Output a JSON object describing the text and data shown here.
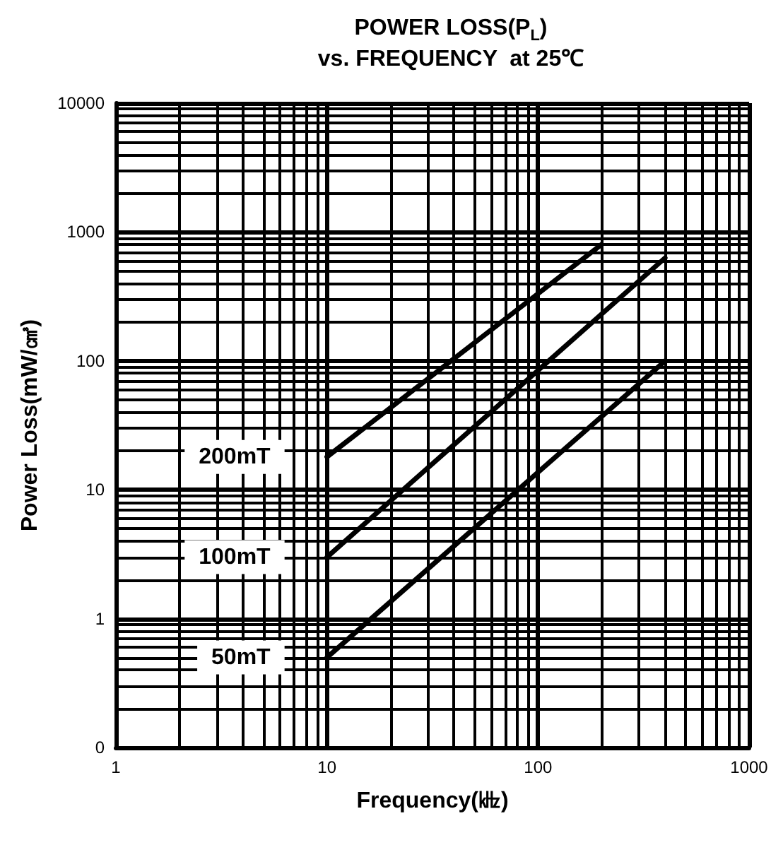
{
  "chart_data": {
    "type": "line",
    "title": "POWER LOSS(P$_{L}$)\nvs. FREQUENCY  at 25℃",
    "xlabel": "Frequency(㎑)",
    "ylabel": "Power Loss(mW/㎤)",
    "log": "xy",
    "grid": true,
    "legend": false,
    "marker": "none",
    "line_style": "solid",
    "xlim": [
      1,
      1000
    ],
    "xticks": [
      1,
      10,
      100,
      1000
    ],
    "ylim": [
      0.1,
      10000
    ],
    "yticks": [
      {
        "value": 0.1,
        "label": "0"
      },
      1,
      10,
      100,
      1000,
      10000
    ],
    "series": [
      {
        "name": "200mT",
        "color": "#000000",
        "x": [
          10,
          200
        ],
        "values": [
          18,
          800
        ]
      },
      {
        "name": "100mT",
        "color": "#000000",
        "x": [
          10,
          400
        ],
        "values": [
          3,
          630
        ]
      },
      {
        "name": "50mT",
        "color": "#000000",
        "x": [
          10,
          400
        ],
        "values": [
          0.5,
          100
        ]
      }
    ]
  }
}
